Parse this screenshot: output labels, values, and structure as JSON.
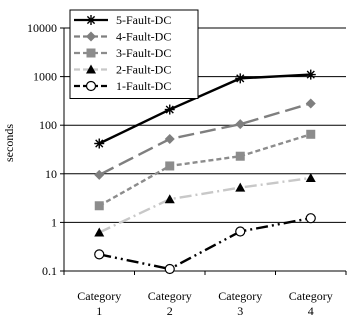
{
  "chart_data": {
    "type": "line",
    "title": "",
    "xlabel": "",
    "ylabel": "seconds",
    "y_scale": "log",
    "ylim": [
      0.1,
      10000
    ],
    "y_ticks": [
      "0.1",
      "1",
      "10",
      "100",
      "1000",
      "10000"
    ],
    "grid": "horizontal",
    "legend_position": "top-left",
    "categories": [
      [
        "Category",
        "1"
      ],
      [
        "Category",
        "2"
      ],
      [
        "Category",
        "3"
      ],
      [
        "Category",
        "4"
      ]
    ],
    "series": [
      {
        "name": "5-Fault-DC",
        "values": [
          42,
          210,
          920,
          1100
        ],
        "color": "#000000",
        "dash": "solid",
        "marker": "asterisk"
      },
      {
        "name": "4-Fault-DC",
        "values": [
          9.5,
          52,
          105,
          280
        ],
        "color": "#7f7f7f",
        "dash": "longdash",
        "marker": "diamond"
      },
      {
        "name": "3-Fault-DC",
        "values": [
          2.2,
          14.5,
          23,
          65
        ],
        "color": "#8c8c8c",
        "dash": "shortdash",
        "marker": "square"
      },
      {
        "name": "2-Fault-DC",
        "values": [
          0.62,
          3.0,
          5.2,
          8.2
        ],
        "color": "#c8c8c8",
        "dash": "dashdot",
        "marker": "triangle"
      },
      {
        "name": "1-Fault-DC",
        "values": [
          0.22,
          0.11,
          0.65,
          1.22
        ],
        "color": "#000000",
        "dash": "dashdotdot",
        "marker": "circle"
      }
    ]
  }
}
